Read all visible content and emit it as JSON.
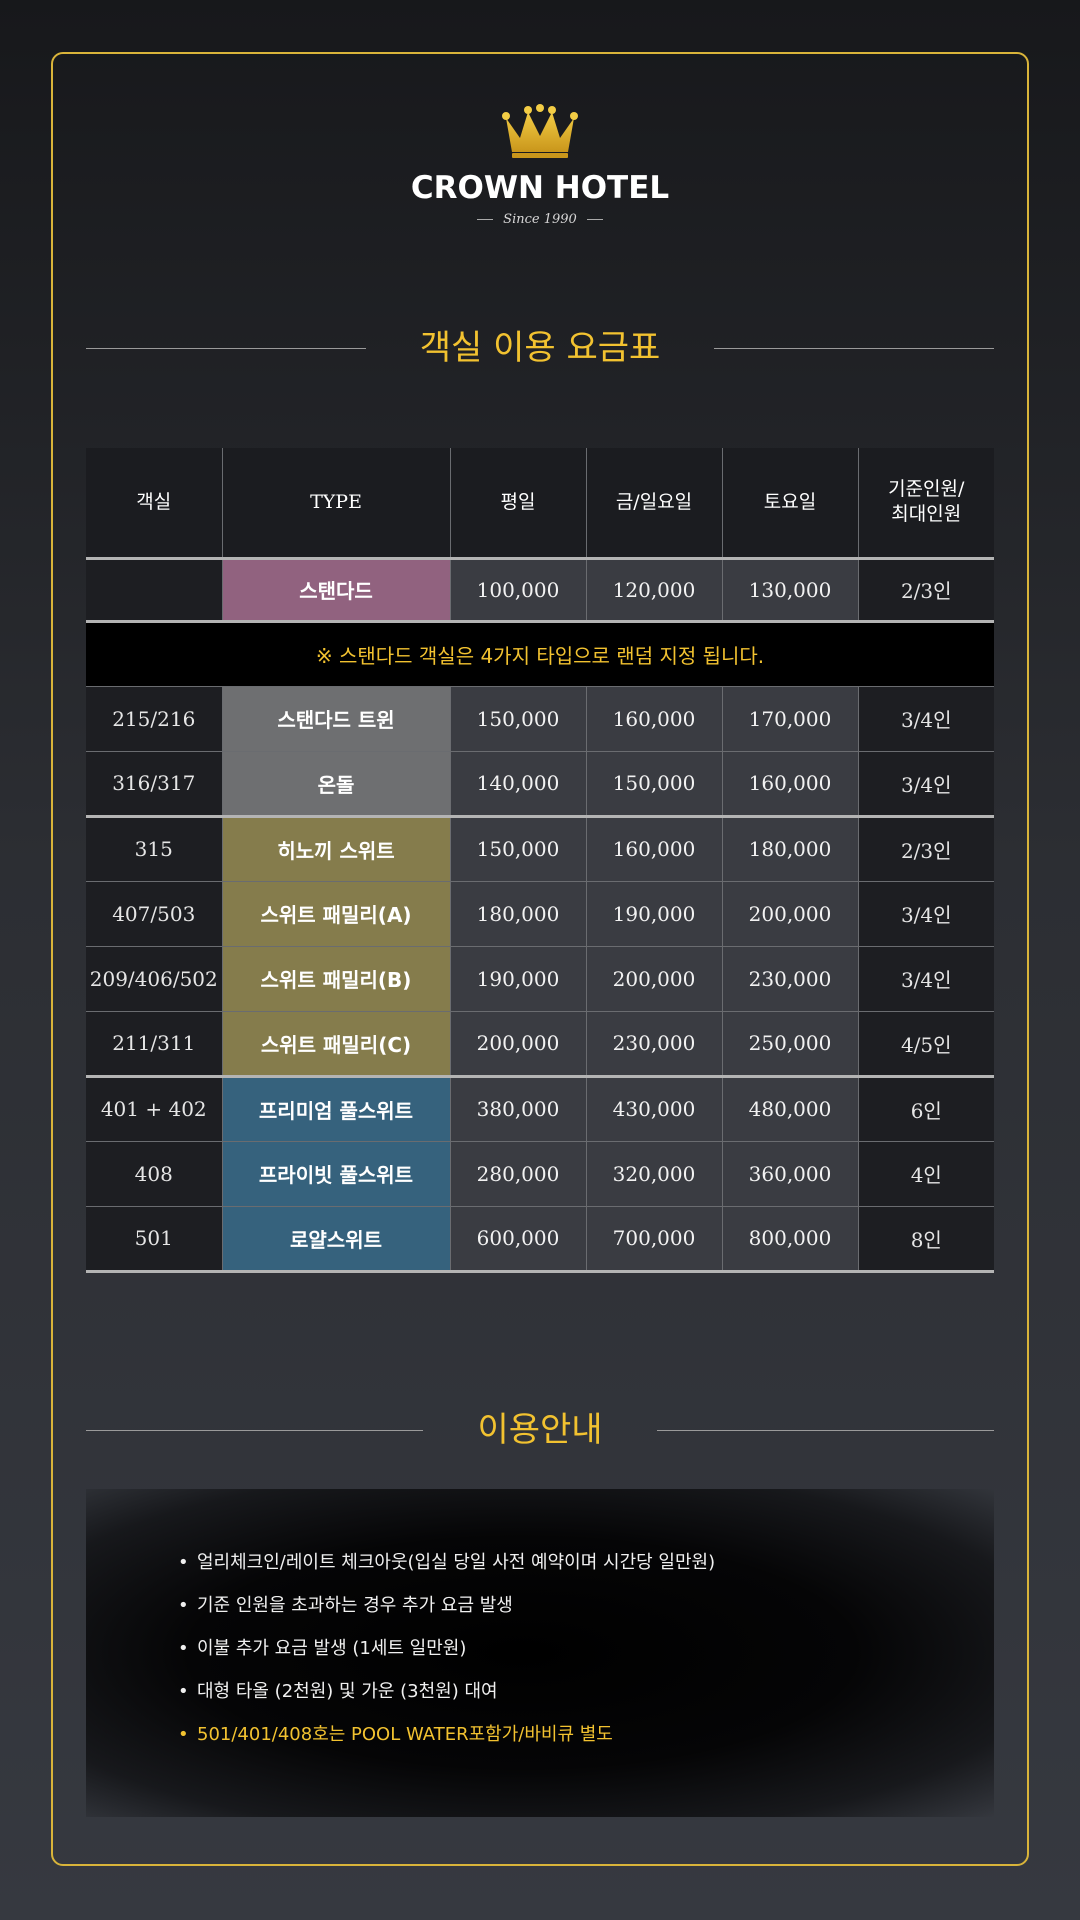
{
  "brand": {
    "name": "CROWN HOTEL",
    "since": "Since 1990",
    "crown_color": "#e3b52b"
  },
  "rates_title": "객실 이용 요금표",
  "table": {
    "headers": {
      "room": "객실",
      "type": "TYPE",
      "weekday": "평일",
      "fri_sun": "금/일요일",
      "saturday": "토요일",
      "capacity_line1": "기준인원/",
      "capacity_line2": "최대인원"
    },
    "rows": [
      {
        "room": "",
        "type": "스탠다드",
        "weekday": "100,000",
        "fri_sun": "120,000",
        "saturday": "130,000",
        "capacity": "2/3인"
      },
      {
        "room": "215/216",
        "type": "스탠다드 트윈",
        "weekday": "150,000",
        "fri_sun": "160,000",
        "saturday": "170,000",
        "capacity": "3/4인"
      },
      {
        "room": "316/317",
        "type": "온돌",
        "weekday": "140,000",
        "fri_sun": "150,000",
        "saturday": "160,000",
        "capacity": "3/4인"
      },
      {
        "room": "315",
        "type": "히노끼 스위트",
        "weekday": "150,000",
        "fri_sun": "160,000",
        "saturday": "180,000",
        "capacity": "2/3인"
      },
      {
        "room": "407/503",
        "type": "스위트 패밀리(A)",
        "weekday": "180,000",
        "fri_sun": "190,000",
        "saturday": "200,000",
        "capacity": "3/4인"
      },
      {
        "room": "209/406/502",
        "type": "스위트 패밀리(B)",
        "weekday": "190,000",
        "fri_sun": "200,000",
        "saturday": "230,000",
        "capacity": "3/4인"
      },
      {
        "room": "211/311",
        "type": "스위트 패밀리(C)",
        "weekday": "200,000",
        "fri_sun": "230,000",
        "saturday": "250,000",
        "capacity": "4/5인"
      },
      {
        "room": "401 + 402",
        "type": "프리미엄 풀스위트",
        "weekday": "380,000",
        "fri_sun": "430,000",
        "saturday": "480,000",
        "capacity": "6인"
      },
      {
        "room": "408",
        "type": "프라이빗 풀스위트",
        "weekday": "280,000",
        "fri_sun": "320,000",
        "saturday": "360,000",
        "capacity": "4인"
      },
      {
        "room": "501",
        "type": "로얄스위트",
        "weekday": "600,000",
        "fri_sun": "700,000",
        "saturday": "800,000",
        "capacity": "8인"
      }
    ],
    "standard_note": "※ 스탠다드 객실은 4가지 타입으로 랜덤 지정 됩니다.",
    "type_colors": {
      "standard": "#91627f",
      "gray": "#6e6f71",
      "olive": "#857c4c",
      "blue": "#36627d"
    }
  },
  "info_title": "이용안내",
  "info_items": [
    "얼리체크인/레이트 체크아웃(입실 당일 사전 예약이며 시간당 일만원)",
    "기준 인원을 초과하는 경우 추가 요금 발생",
    "이불 추가 요금 발생 (1세트 일만원)",
    "대형 타올 (2천원) 및 가운 (3천원) 대여",
    "501/401/408호는 POOL WATER포함가/바비큐 별도"
  ],
  "accent_color": "#f2c230"
}
